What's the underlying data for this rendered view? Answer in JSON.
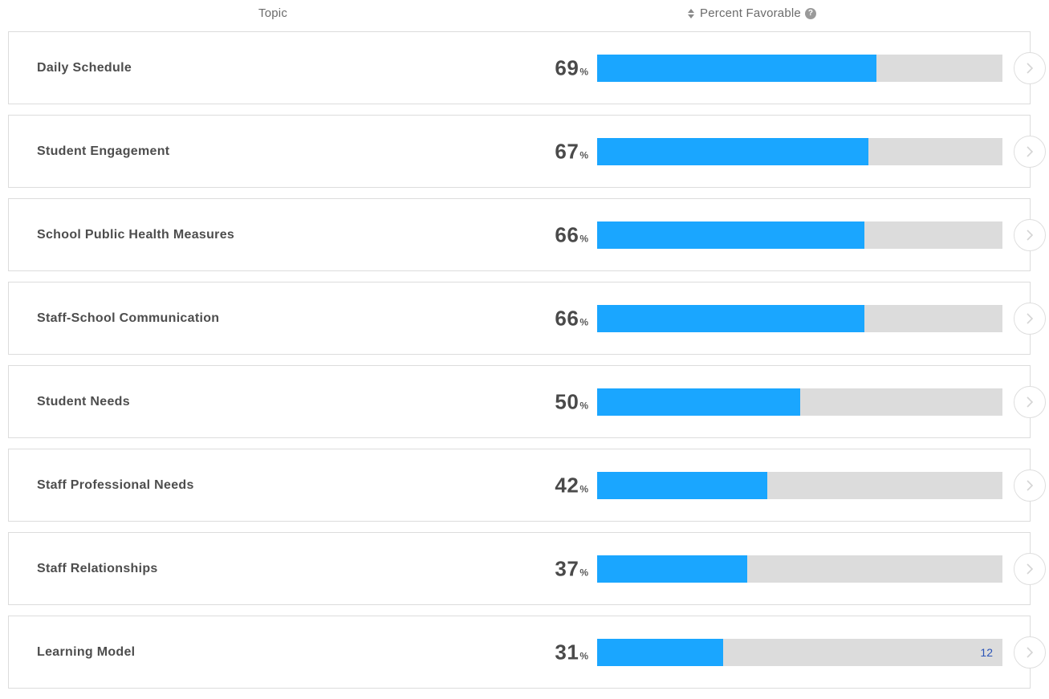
{
  "header": {
    "topic_label": "Topic",
    "percent_label": "Percent Favorable",
    "sort_icon": "sort-updown-icon",
    "help_icon": "question-circle-icon",
    "help_glyph": "?"
  },
  "colors": {
    "bar_fill": "#1aa6ff",
    "bar_track": "#dcdcdc",
    "text": "#4a4a4a",
    "border": "#dcdcdc",
    "note": "#2a54b8"
  },
  "rows": [
    {
      "topic": "Daily Schedule",
      "percent": "69",
      "value": 69,
      "sign": "%",
      "note": ""
    },
    {
      "topic": "Student Engagement",
      "percent": "67",
      "value": 67,
      "sign": "%",
      "note": ""
    },
    {
      "topic": "School Public Health Measures",
      "percent": "66",
      "value": 66,
      "sign": "%",
      "note": ""
    },
    {
      "topic": "Staff-School Communication",
      "percent": "66",
      "value": 66,
      "sign": "%",
      "note": ""
    },
    {
      "topic": "Student Needs",
      "percent": "50",
      "value": 50,
      "sign": "%",
      "note": ""
    },
    {
      "topic": "Staff Professional Needs",
      "percent": "42",
      "value": 42,
      "sign": "%",
      "note": ""
    },
    {
      "topic": "Staff Relationships",
      "percent": "37",
      "value": 37,
      "sign": "%",
      "note": ""
    },
    {
      "topic": "Learning Model",
      "percent": "31",
      "value": 31,
      "sign": "%",
      "note": "12"
    }
  ],
  "row_icon": "chevron-right-icon"
}
